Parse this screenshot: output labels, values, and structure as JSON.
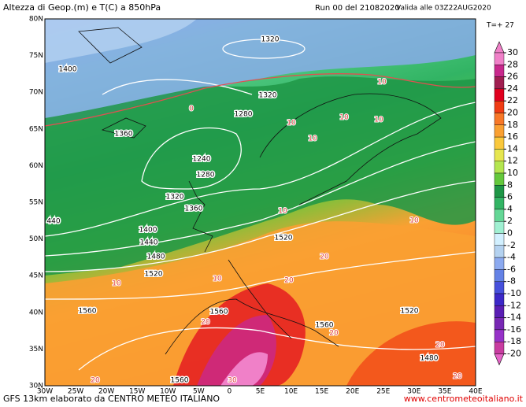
{
  "header": {
    "title": "Altezza di Geop.(m) e T(C) a 850hPa",
    "run": "Run 00 del 21082020",
    "valid": "Valida alle 03Z22AUG2020",
    "step": "T=+ 27"
  },
  "map": {
    "lat_labels": [
      "80N",
      "75N",
      "70N",
      "65N",
      "60N",
      "55N",
      "50N",
      "45N",
      "40N",
      "35N",
      "30N"
    ],
    "lon_labels": [
      "30W",
      "25W",
      "20W",
      "15W",
      "10W",
      "5W",
      "0",
      "5E",
      "10E",
      "15E",
      "20E",
      "25E",
      "30E",
      "35E",
      "40E"
    ],
    "height_labels": [
      "1320",
      "1400",
      "1320",
      "1280",
      "1360",
      "1240",
      "1280",
      "1320",
      "1360",
      "440",
      "1400",
      "1440",
      "1520",
      "1480",
      "1520",
      "1560",
      "1560",
      "1560",
      "1520",
      "1480",
      "1560"
    ],
    "temp_labels": [
      "10",
      "10",
      "10",
      "10",
      "10",
      "10",
      "10",
      "10",
      "10",
      "20",
      "20",
      "20",
      "20",
      "20",
      "20",
      "20",
      "30",
      "0"
    ]
  },
  "colorbar": {
    "ticks": [
      30,
      28,
      26,
      24,
      22,
      20,
      18,
      16,
      14,
      12,
      10,
      8,
      6,
      4,
      2,
      0,
      -2,
      -4,
      -6,
      -8,
      -10,
      -12,
      -14,
      -16,
      -18,
      -20
    ],
    "colors": [
      "#f080c8",
      "#c8288c",
      "#a01e50",
      "#e0001e",
      "#f03c14",
      "#f87828",
      "#faa032",
      "#fac83c",
      "#e6e650",
      "#b4e650",
      "#64c83c",
      "#1e9646",
      "#32b464",
      "#64d796",
      "#a0f0d2",
      "#d2f0ff",
      "#b4d2f0",
      "#8caaf0",
      "#6482e6",
      "#4650dc",
      "#3c28c8",
      "#5a1eb4",
      "#7828b4",
      "#9632c8",
      "#c83ca0"
    ]
  },
  "footer": {
    "left": "GFS 13km elaborato da CENTRO METEO ITALIANO",
    "right": "www.centrometeoitaliano.it"
  }
}
